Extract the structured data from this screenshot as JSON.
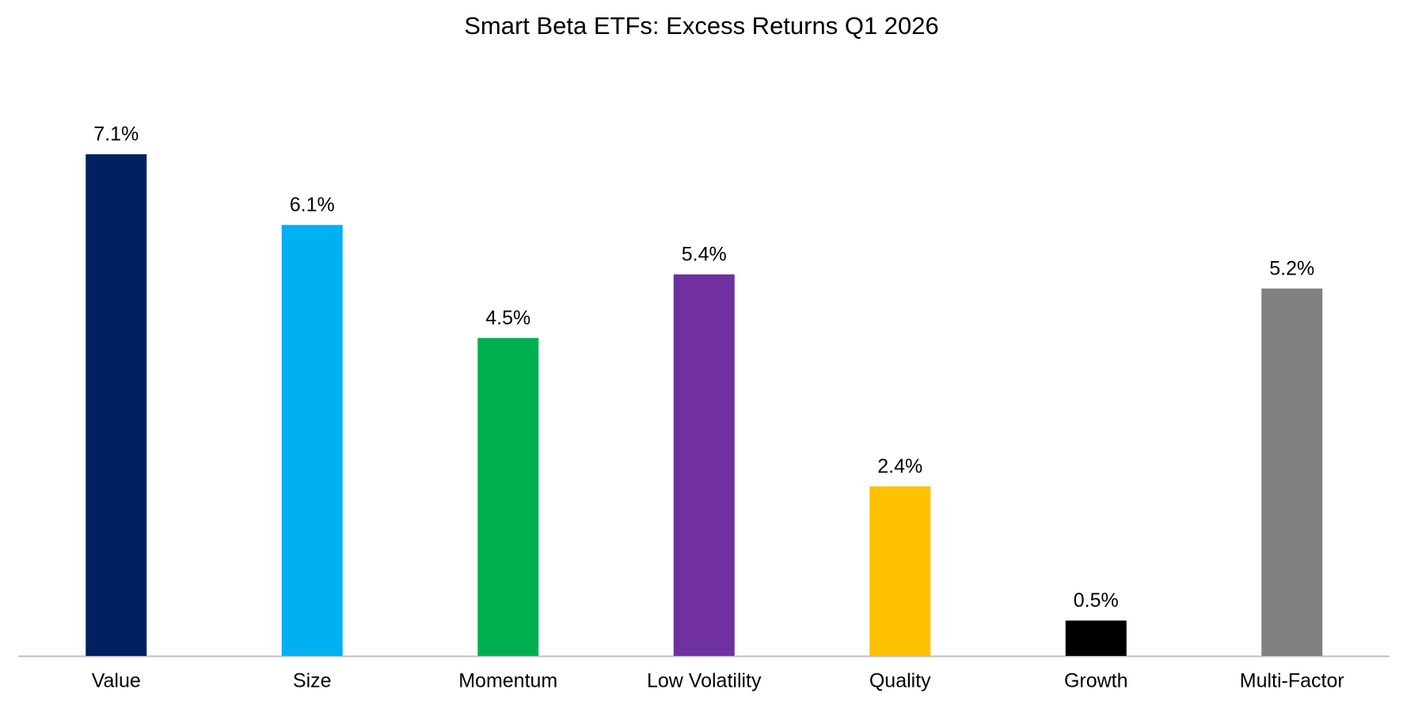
{
  "chart_data": {
    "type": "bar",
    "title": "Smart Beta ETFs: Excess Returns Q1 2026",
    "categories": [
      "Value",
      "Size",
      "Momentum",
      "Low Volatility",
      "Quality",
      "Growth",
      "Multi-Factor"
    ],
    "values": [
      7.1,
      6.1,
      4.5,
      5.4,
      2.4,
      0.5,
      5.2
    ],
    "value_labels": [
      "7.1%",
      "6.1%",
      "4.5%",
      "5.4%",
      "2.4%",
      "0.5%",
      "5.2%"
    ],
    "colors": [
      "#002060",
      "#00b0f0",
      "#00b050",
      "#7030a0",
      "#ffc000",
      "#000000",
      "#808080"
    ]
  }
}
